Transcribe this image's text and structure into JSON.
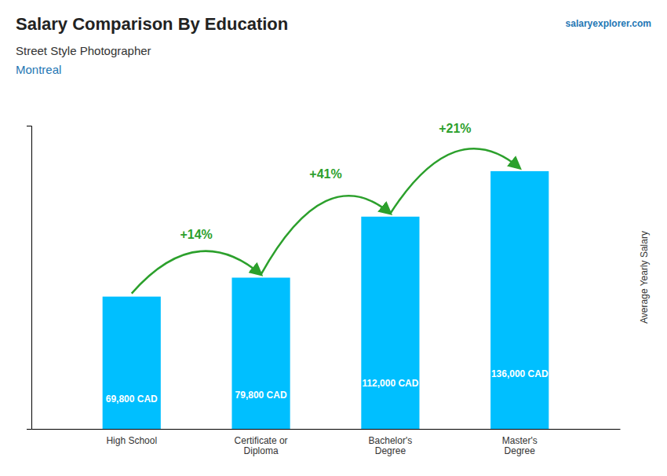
{
  "chart_data": {
    "type": "bar",
    "title": "Salary Comparison By Education",
    "subtitle": [
      "Street Style Photographer",
      "Montreal"
    ],
    "watermark": "salaryexplorer.com",
    "y_label": "Average Yearly Salary",
    "categories": [
      "High School",
      "Certificate or\nDiploma",
      "Bachelor's\nDegree",
      "Master's\nDegree"
    ],
    "values": [
      69800,
      79800,
      112000,
      136000
    ],
    "value_labels": [
      "69,800 CAD",
      "79,800 CAD",
      "112,000 CAD",
      "136,000 CAD"
    ],
    "data_labels": true,
    "annotations": [
      "+14%",
      "+41%",
      "+21%"
    ],
    "color": "#00bfff",
    "ylim": [
      0,
      160000
    ],
    "tick_labels": "x"
  }
}
